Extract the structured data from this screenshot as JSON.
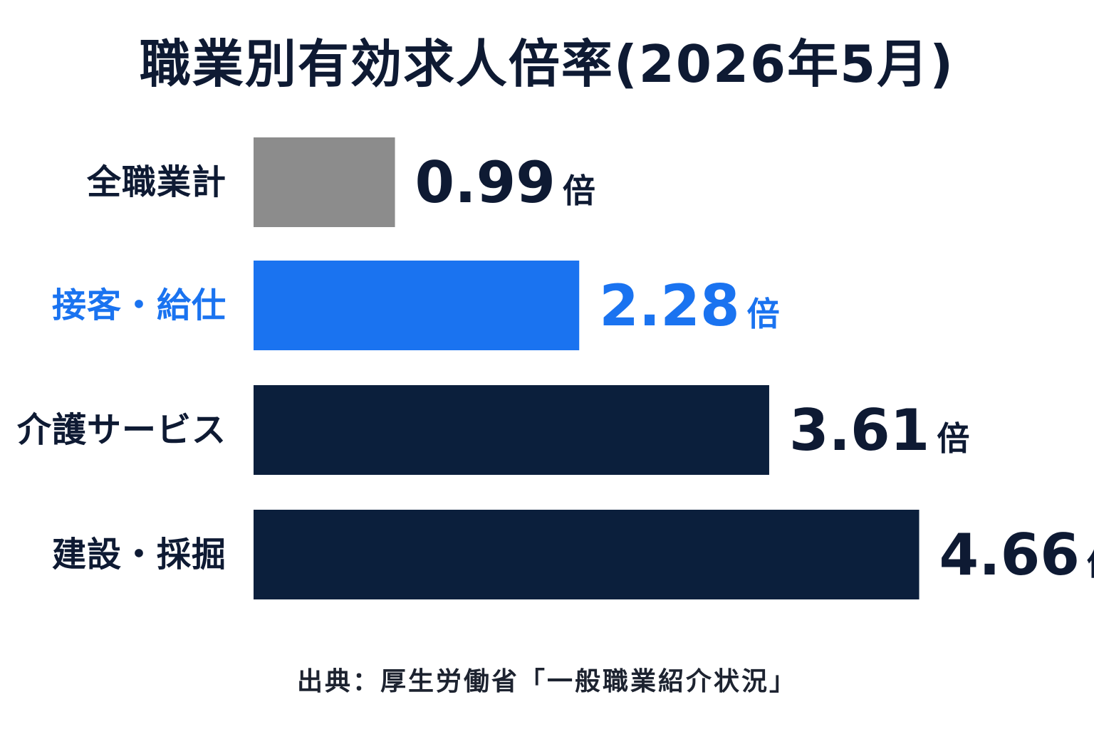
{
  "title": "職業別有効求人倍率(2026年5月)",
  "source": "出典：厚生労働省「一般職業紹介状況」",
  "chart_data": {
    "type": "bar",
    "orientation": "horizontal",
    "categories": [
      "全職業計",
      "接客・給仕",
      "介護サービス",
      "建設・採掘"
    ],
    "values": [
      0.99,
      2.28,
      3.61,
      4.66
    ],
    "value_labels": [
      "0.99",
      "2.28",
      "3.61",
      "4.66"
    ],
    "unit": "倍",
    "title": "職業別有効求人倍率(2026年5月)",
    "xlim": [
      0,
      5
    ],
    "grid": false,
    "legend": "none",
    "bar_colors": [
      "#8c8c8c",
      "#1a73f0",
      "#0b1f3c",
      "#0b1f3c"
    ],
    "label_colors": [
      "#0e1a33",
      "#1a73f0",
      "#0e1a33",
      "#0e1a33"
    ]
  }
}
